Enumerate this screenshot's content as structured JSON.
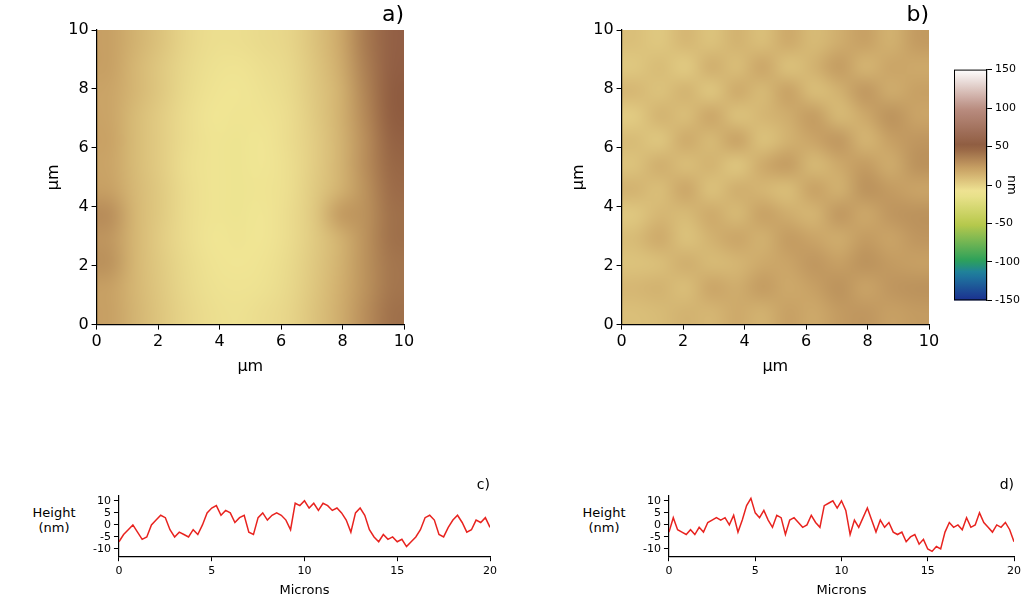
{
  "chart_data": [
    {
      "type": "heatmap",
      "title": "a)",
      "x_label": "µm",
      "y_label": "µm",
      "xlim": [
        0,
        10
      ],
      "ylim": [
        0,
        10
      ],
      "xticks": [
        0,
        2,
        4,
        6,
        8,
        10
      ],
      "yticks": [
        0,
        2,
        4,
        6,
        8,
        10
      ],
      "grid": false,
      "cells": [
        [
          22,
          14,
          6,
          -2,
          -6,
          -6,
          -4,
          -2,
          6,
          18,
          38,
          55
        ],
        [
          22,
          12,
          4,
          -3,
          -7,
          -8,
          -6,
          -3,
          5,
          16,
          36,
          54
        ],
        [
          20,
          12,
          4,
          -4,
          -8,
          -9,
          -7,
          -4,
          4,
          14,
          34,
          52
        ],
        [
          20,
          10,
          2,
          -5,
          -9,
          -10,
          -8,
          -5,
          3,
          14,
          32,
          50
        ],
        [
          21,
          10,
          2,
          -5,
          -10,
          -11,
          -9,
          -5,
          2,
          13,
          30,
          48
        ],
        [
          20,
          10,
          2,
          -6,
          -10,
          -11,
          -9,
          -6,
          2,
          13,
          30,
          46
        ],
        [
          22,
          11,
          3,
          -5,
          -10,
          -11,
          -10,
          -6,
          3,
          14,
          28,
          44
        ],
        [
          30,
          12,
          3,
          -5,
          -10,
          -11,
          -9,
          -5,
          4,
          24,
          28,
          42
        ],
        [
          26,
          12,
          2,
          -5,
          -9,
          -10,
          -9,
          -5,
          3,
          14,
          28,
          42
        ],
        [
          28,
          12,
          3,
          -4,
          -8,
          -9,
          -8,
          -4,
          4,
          14,
          28,
          40
        ],
        [
          22,
          12,
          4,
          -3,
          -7,
          -8,
          -7,
          -3,
          5,
          15,
          28,
          40
        ],
        [
          22,
          13,
          5,
          -2,
          -6,
          -7,
          -5,
          -2,
          6,
          16,
          30,
          42
        ]
      ]
    },
    {
      "type": "heatmap",
      "title": "b)",
      "x_label": "µm",
      "y_label": "µm",
      "xlim": [
        0,
        10
      ],
      "ylim": [
        0,
        10
      ],
      "xticks": [
        0,
        2,
        4,
        6,
        8,
        10
      ],
      "yticks": [
        0,
        2,
        4,
        6,
        8,
        10
      ],
      "grid": false,
      "cells": [
        [
          8,
          4,
          12,
          6,
          14,
          8,
          18,
          10,
          16,
          22,
          14,
          24
        ],
        [
          4,
          10,
          2,
          16,
          8,
          20,
          6,
          14,
          24,
          12,
          20,
          18
        ],
        [
          12,
          6,
          14,
          4,
          18,
          10,
          22,
          8,
          14,
          26,
          16,
          22
        ],
        [
          2,
          14,
          8,
          20,
          6,
          12,
          16,
          24,
          10,
          18,
          28,
          20
        ],
        [
          10,
          4,
          18,
          10,
          22,
          6,
          14,
          20,
          26,
          12,
          22,
          26
        ],
        [
          6,
          16,
          8,
          14,
          4,
          18,
          24,
          10,
          18,
          24,
          16,
          28
        ],
        [
          14,
          8,
          20,
          6,
          16,
          12,
          8,
          22,
          14,
          28,
          24,
          20
        ],
        [
          4,
          12,
          10,
          18,
          10,
          22,
          16,
          12,
          26,
          18,
          26,
          28
        ],
        [
          10,
          18,
          6,
          14,
          20,
          14,
          24,
          20,
          16,
          24,
          20,
          26
        ],
        [
          6,
          8,
          16,
          10,
          12,
          18,
          20,
          26,
          22,
          28,
          24,
          22
        ],
        [
          12,
          14,
          8,
          20,
          16,
          24,
          18,
          22,
          28,
          20,
          26,
          28
        ],
        [
          8,
          10,
          14,
          12,
          18,
          14,
          22,
          18,
          24,
          26,
          22,
          24
        ]
      ],
      "colorbar": {
        "label": "nm",
        "range": [
          -150,
          150
        ],
        "ticks": [
          -150,
          -100,
          -50,
          0,
          50,
          100,
          150
        ]
      }
    },
    {
      "type": "line",
      "title": "c)",
      "x_label": "Microns",
      "y_label": "Height (nm)",
      "xlim": [
        0,
        20
      ],
      "ylim": [
        -13,
        12
      ],
      "xticks": [
        0,
        5,
        10,
        15,
        20
      ],
      "yticks": [
        -10,
        -5,
        0,
        5,
        10
      ],
      "grid": false,
      "color": "#e8231f",
      "x": [
        0,
        0.25,
        0.5,
        0.75,
        1,
        1.25,
        1.5,
        1.75,
        2,
        2.25,
        2.5,
        2.75,
        3,
        3.25,
        3.5,
        3.75,
        4,
        4.25,
        4.5,
        4.75,
        5,
        5.25,
        5.5,
        5.75,
        6,
        6.25,
        6.5,
        6.75,
        7,
        7.25,
        7.5,
        7.75,
        8,
        8.25,
        8.5,
        8.75,
        9,
        9.25,
        9.5,
        9.75,
        10,
        10.25,
        10.5,
        10.75,
        11,
        11.25,
        11.5,
        11.75,
        12,
        12.25,
        12.5,
        12.75,
        13,
        13.25,
        13.5,
        13.75,
        14,
        14.25,
        14.5,
        14.75,
        15,
        15.25,
        15.5,
        15.75,
        16,
        16.25,
        16.5,
        16.75,
        17,
        17.25,
        17.5,
        17.75,
        18,
        18.25,
        18.5,
        18.75,
        19,
        19.25,
        19.5,
        19.75,
        20
      ],
      "values": [
        -7,
        -4,
        -2,
        0,
        -3,
        -6,
        -5,
        0,
        2,
        4,
        3,
        -2,
        -5,
        -3,
        -4,
        -5,
        -2,
        -4,
        0,
        5,
        7,
        8,
        4,
        6,
        5,
        1,
        3,
        4,
        -3,
        -4,
        3,
        5,
        2,
        4,
        5,
        4,
        2,
        -2,
        9,
        8,
        10,
        7,
        9,
        6,
        9,
        8,
        6,
        7,
        5,
        2,
        -3,
        5,
        7,
        4,
        -2,
        -5,
        -7,
        -4,
        -6,
        -5,
        -7,
        -6,
        -9,
        -7,
        -5,
        -2,
        3,
        4,
        2,
        -4,
        -5,
        -1,
        2,
        4,
        1,
        -3,
        -2,
        2,
        1,
        3,
        -1
      ]
    },
    {
      "type": "line",
      "title": "d)",
      "x_label": "Microns",
      "y_label": "Height (nm)",
      "xlim": [
        0,
        20
      ],
      "ylim": [
        -13,
        12
      ],
      "xticks": [
        0,
        5,
        10,
        15,
        20
      ],
      "yticks": [
        -10,
        -5,
        0,
        5,
        10
      ],
      "grid": false,
      "color": "#e8231f",
      "x": [
        0,
        0.25,
        0.5,
        0.75,
        1,
        1.25,
        1.5,
        1.75,
        2,
        2.25,
        2.5,
        2.75,
        3,
        3.25,
        3.5,
        3.75,
        4,
        4.25,
        4.5,
        4.75,
        5,
        5.25,
        5.5,
        5.75,
        6,
        6.25,
        6.5,
        6.75,
        7,
        7.25,
        7.5,
        7.75,
        8,
        8.25,
        8.5,
        8.75,
        9,
        9.25,
        9.5,
        9.75,
        10,
        10.25,
        10.5,
        10.75,
        11,
        11.25,
        11.5,
        11.75,
        12,
        12.25,
        12.5,
        12.75,
        13,
        13.25,
        13.5,
        13.75,
        14,
        14.25,
        14.5,
        14.75,
        15,
        15.25,
        15.5,
        15.75,
        16,
        16.25,
        16.5,
        16.75,
        17,
        17.25,
        17.5,
        17.75,
        18,
        18.25,
        18.5,
        18.75,
        19,
        19.25,
        19.5,
        19.75,
        20
      ],
      "values": [
        -3,
        3,
        -2,
        -3,
        -4,
        -2,
        -4,
        -1,
        -3,
        1,
        2,
        3,
        2,
        3,
        0,
        4,
        -3,
        2,
        8,
        11,
        5,
        3,
        6,
        2,
        -1,
        4,
        3,
        -4,
        2,
        3,
        1,
        -1,
        0,
        4,
        1,
        -1,
        8,
        9,
        10,
        7,
        10,
        6,
        -4,
        2,
        -1,
        3,
        7,
        2,
        -3,
        2,
        -1,
        1,
        -3,
        -4,
        -3,
        -7,
        -5,
        -4,
        -8,
        -6,
        -10,
        -11,
        -9,
        -10,
        -3,
        1,
        -1,
        0,
        -2,
        3,
        -1,
        0,
        5,
        1,
        -1,
        -3,
        0,
        -1,
        1,
        -2,
        -7
      ]
    }
  ]
}
